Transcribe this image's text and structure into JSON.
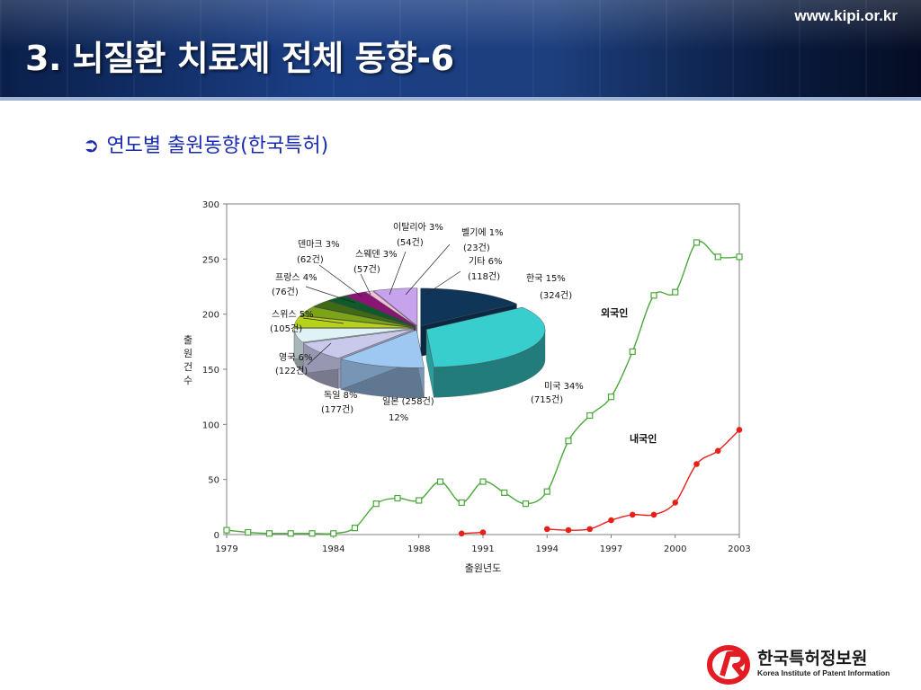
{
  "header": {
    "title": "3. 뇌질환 치료제 전체 동향-6",
    "site_url": "www.kipi.or.kr"
  },
  "bullet": {
    "icon": "arrow-right-circle-icon",
    "text": "연도별 출원동향(한국특허)"
  },
  "colors": {
    "foreign_line": "#4aa83a",
    "domestic_line": "#e8201a",
    "bullet_text": "#1a2bb0",
    "header_bg": "#1b3f86",
    "logo_red": "#e31b23"
  },
  "chart_data": [
    {
      "type": "line",
      "xlabel": "출원년도",
      "ylabel": "출원건수",
      "ylim": [
        0,
        300
      ],
      "yticks": [
        0,
        50,
        100,
        150,
        200,
        250,
        300
      ],
      "xlim": [
        1979,
        2003
      ],
      "xticks": [
        1979,
        1984,
        1988,
        1991,
        1994,
        1997,
        2000,
        2003
      ],
      "grid": false,
      "series": [
        {
          "name": "외국인",
          "x": [
            1979,
            1980,
            1981,
            1982,
            1983,
            1984,
            1985,
            1986,
            1987,
            1988,
            1989,
            1990,
            1991,
            1992,
            1993,
            1994,
            1995,
            1996,
            1997,
            1998,
            1999,
            2000,
            2001,
            2002,
            2003
          ],
          "y": [
            4,
            2,
            1,
            1,
            1,
            1,
            6,
            28,
            33,
            31,
            48,
            29,
            48,
            38,
            28,
            39,
            85,
            108,
            125,
            166,
            217,
            220,
            265,
            252,
            252
          ]
        },
        {
          "name": "내국인",
          "segments": [
            {
              "x": [
                1990,
                1991
              ],
              "y": [
                1,
                2
              ]
            },
            {
              "x": [
                1994,
                1995,
                1996,
                1997,
                1998,
                1999,
                2000,
                2001,
                2002,
                2003
              ],
              "y": [
                5,
                4,
                5,
                13,
                18,
                18,
                29,
                64,
                76,
                95
              ]
            }
          ]
        }
      ]
    },
    {
      "type": "pie",
      "style": "3d-exploded",
      "slices": [
        {
          "label": "한국 15%",
          "count": "(324건)",
          "value": 15,
          "color": "#0f3558"
        },
        {
          "label": "미국 34%",
          "count": "(715건)",
          "value": 34,
          "color": "#39cece"
        },
        {
          "label": "일본 (258건)",
          "count": "12%",
          "value": 12,
          "color": "#9ec7f1"
        },
        {
          "label": "독일 8%",
          "count": "(177건)",
          "value": 8,
          "color": "#c9c9ec"
        },
        {
          "label": "영국 6%",
          "count": "(122건)",
          "value": 6,
          "color": "#dff3f6"
        },
        {
          "label": "스위스 5%",
          "count": "(105건)",
          "value": 5,
          "color": "#b7d21c"
        },
        {
          "label": "프랑스 4%",
          "count": "(76건)",
          "value": 4,
          "color": "#7da319"
        },
        {
          "label": "덴마크 3%",
          "count": "(62건)",
          "value": 3,
          "color": "#3f6b14"
        },
        {
          "label": "스웨덴 3%",
          "count": "(57건)",
          "value": 3,
          "color": "#0f5a2a"
        },
        {
          "label": "이탈리아 3%",
          "count": "(54건)",
          "value": 3,
          "color": "#8a1574"
        },
        {
          "label": "벨기에 1%",
          "count": "(23건)",
          "value": 1,
          "color": "#f2c0dc"
        },
        {
          "label": "기타 6%",
          "count": "(118건)",
          "value": 6,
          "color": "#c7a3ee"
        }
      ]
    }
  ],
  "logo": {
    "name": "한국특허정보원",
    "subtitle": "Korea Institute of Patent Information"
  }
}
